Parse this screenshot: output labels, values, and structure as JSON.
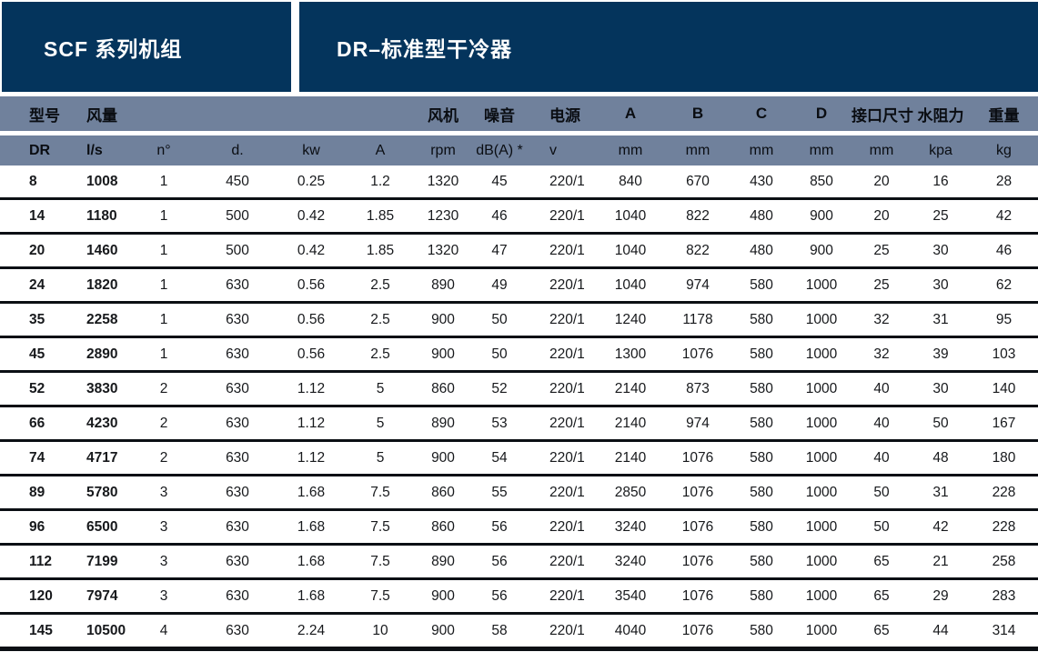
{
  "header": {
    "left_title": "SCF 系列机组",
    "right_title": "DR–标准型干冷器"
  },
  "colors": {
    "banner_bg": "#04345C",
    "band_bg": "#70819C",
    "row_divider": "#0b0f14"
  },
  "table": {
    "group_headers": [
      "型号",
      "风量",
      "",
      "",
      "",
      "",
      "风机",
      "噪音",
      "电源",
      "A",
      "B",
      "C",
      "D",
      "接口尺寸",
      "水阻力",
      "重量"
    ],
    "unit_headers": [
      "DR",
      "l/s",
      "n°",
      "d.",
      "kw",
      "A",
      "rpm",
      "dB(A) *",
      "v",
      "mm",
      "mm",
      "mm",
      "mm",
      "mm",
      "kpa",
      "kg"
    ],
    "rows": [
      [
        "8",
        "1008",
        "1",
        "450",
        "0.25",
        "1.2",
        "1320",
        "45",
        "220/1",
        "840",
        "670",
        "430",
        "850",
        "20",
        "16",
        "28"
      ],
      [
        "14",
        "1180",
        "1",
        "500",
        "0.42",
        "1.85",
        "1230",
        "46",
        "220/1",
        "1040",
        "822",
        "480",
        "900",
        "20",
        "25",
        "42"
      ],
      [
        "20",
        "1460",
        "1",
        "500",
        "0.42",
        "1.85",
        "1320",
        "47",
        "220/1",
        "1040",
        "822",
        "480",
        "900",
        "25",
        "30",
        "46"
      ],
      [
        "24",
        "1820",
        "1",
        "630",
        "0.56",
        "2.5",
        "890",
        "49",
        "220/1",
        "1040",
        "974",
        "580",
        "1000",
        "25",
        "30",
        "62"
      ],
      [
        "35",
        "2258",
        "1",
        "630",
        "0.56",
        "2.5",
        "900",
        "50",
        "220/1",
        "1240",
        "1178",
        "580",
        "1000",
        "32",
        "31",
        "95"
      ],
      [
        "45",
        "2890",
        "1",
        "630",
        "0.56",
        "2.5",
        "900",
        "50",
        "220/1",
        "1300",
        "1076",
        "580",
        "1000",
        "32",
        "39",
        "103"
      ],
      [
        "52",
        "3830",
        "2",
        "630",
        "1.12",
        "5",
        "860",
        "52",
        "220/1",
        "2140",
        "873",
        "580",
        "1000",
        "40",
        "30",
        "140"
      ],
      [
        "66",
        "4230",
        "2",
        "630",
        "1.12",
        "5",
        "890",
        "53",
        "220/1",
        "2140",
        "974",
        "580",
        "1000",
        "40",
        "50",
        "167"
      ],
      [
        "74",
        "4717",
        "2",
        "630",
        "1.12",
        "5",
        "900",
        "54",
        "220/1",
        "2140",
        "1076",
        "580",
        "1000",
        "40",
        "48",
        "180"
      ],
      [
        "89",
        "5780",
        "3",
        "630",
        "1.68",
        "7.5",
        "860",
        "55",
        "220/1",
        "2850",
        "1076",
        "580",
        "1000",
        "50",
        "31",
        "228"
      ],
      [
        "96",
        "6500",
        "3",
        "630",
        "1.68",
        "7.5",
        "860",
        "56",
        "220/1",
        "3240",
        "1076",
        "580",
        "1000",
        "50",
        "42",
        "228"
      ],
      [
        "112",
        "7199",
        "3",
        "630",
        "1.68",
        "7.5",
        "890",
        "56",
        "220/1",
        "3240",
        "1076",
        "580",
        "1000",
        "65",
        "21",
        "258"
      ],
      [
        "120",
        "7974",
        "3",
        "630",
        "1.68",
        "7.5",
        "900",
        "56",
        "220/1",
        "3540",
        "1076",
        "580",
        "1000",
        "65",
        "29",
        "283"
      ],
      [
        "145",
        "10500",
        "4",
        "630",
        "2.24",
        "10",
        "900",
        "58",
        "220/1",
        "4040",
        "1076",
        "580",
        "1000",
        "65",
        "44",
        "314"
      ]
    ]
  }
}
